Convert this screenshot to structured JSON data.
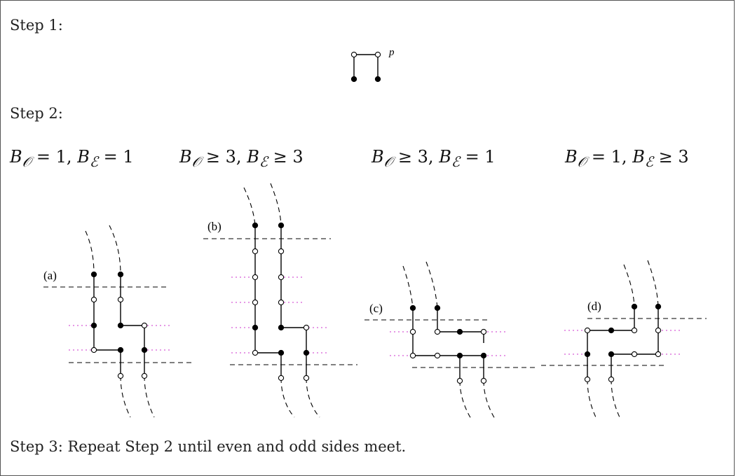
{
  "steps": {
    "step1": "Step 1:",
    "step2": "Step 2:",
    "step3": "Step 3: Repeat Step 2 until even and odd sides meet."
  },
  "conditions": [
    {
      "lhs1": "B",
      "sub1": "𝒪",
      "rel1": "=",
      "val1": "1",
      "lhs2": "B",
      "sub2": "ℰ",
      "rel2": "=",
      "val2": "1"
    },
    {
      "lhs1": "B",
      "sub1": "𝒪",
      "rel1": "≥",
      "val1": "3",
      "lhs2": "B",
      "sub2": "ℰ",
      "rel2": "≥",
      "val2": "3"
    },
    {
      "lhs1": "B",
      "sub1": "𝒪",
      "rel1": "≥",
      "val1": "3",
      "lhs2": "B",
      "sub2": "ℰ",
      "rel2": "=",
      "val2": "1"
    },
    {
      "lhs1": "B",
      "sub1": "𝒪",
      "rel1": "=",
      "val1": "1",
      "lhs2": "B",
      "sub2": "ℰ",
      "rel2": "≥",
      "val2": "3"
    }
  ],
  "step1_label": "p",
  "panel_labels": [
    "(a)",
    "(b)",
    "(c)",
    "(d)"
  ]
}
